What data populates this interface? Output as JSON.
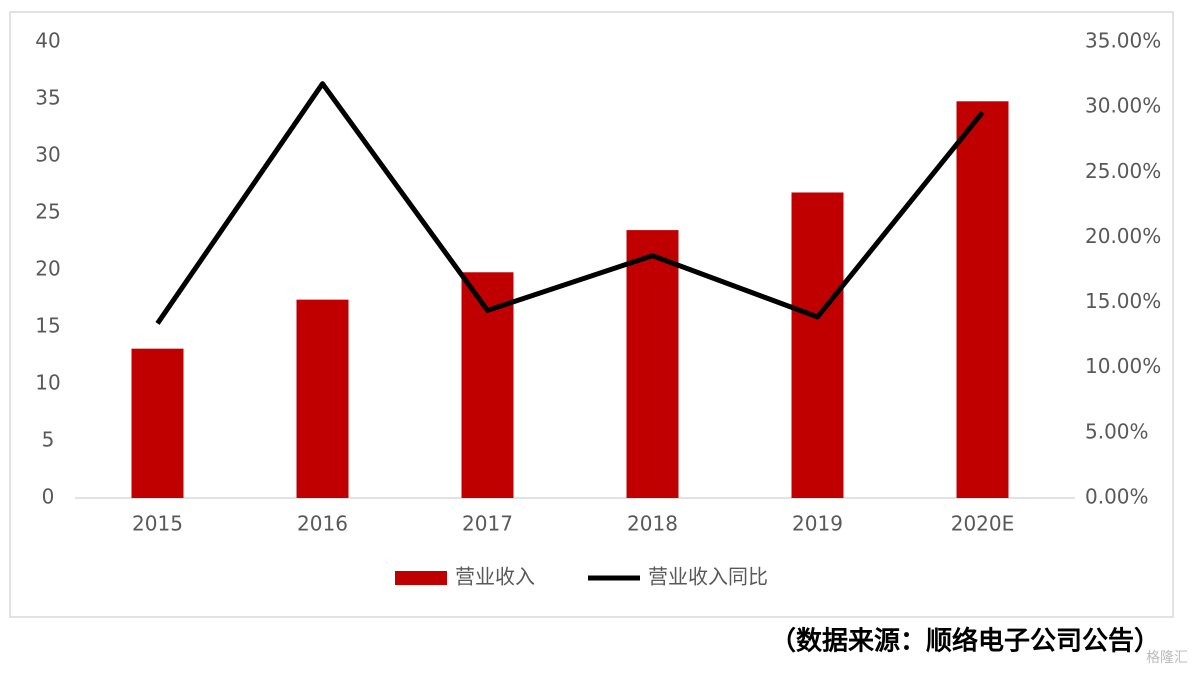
{
  "chart_data": {
    "type": "bar",
    "categories": [
      "2015",
      "2016",
      "2017",
      "2018",
      "2019",
      "2020E"
    ],
    "series": [
      {
        "name": "营业收入",
        "type": "bar",
        "color": "#c00000",
        "values": [
          13.1,
          17.4,
          19.8,
          23.5,
          26.8,
          34.8
        ]
      },
      {
        "name": "营业收入同比",
        "type": "line",
        "axis": "y2",
        "color": "#000000",
        "values": [
          13.4,
          31.8,
          14.4,
          18.6,
          13.9,
          29.6
        ]
      }
    ],
    "ylim": [
      0,
      40
    ],
    "yticks": [
      0,
      5,
      10,
      15,
      20,
      25,
      30,
      35,
      40
    ],
    "y2lim": [
      0,
      35
    ],
    "y2ticks": [
      {
        "value": 0,
        "label": "0.00%"
      },
      {
        "value": 5,
        "label": "5.00%"
      },
      {
        "value": 10,
        "label": "10.00%"
      },
      {
        "value": 15,
        "label": "15.00%"
      },
      {
        "value": 20,
        "label": "20.00%"
      },
      {
        "value": 25,
        "label": "25.00%"
      },
      {
        "value": 30,
        "label": "30.00%"
      },
      {
        "value": 35,
        "label": "35.00%"
      }
    ],
    "legend": "bottom",
    "source": "（数据来源：顺络电子公司公告）",
    "watermark": "格隆汇"
  }
}
